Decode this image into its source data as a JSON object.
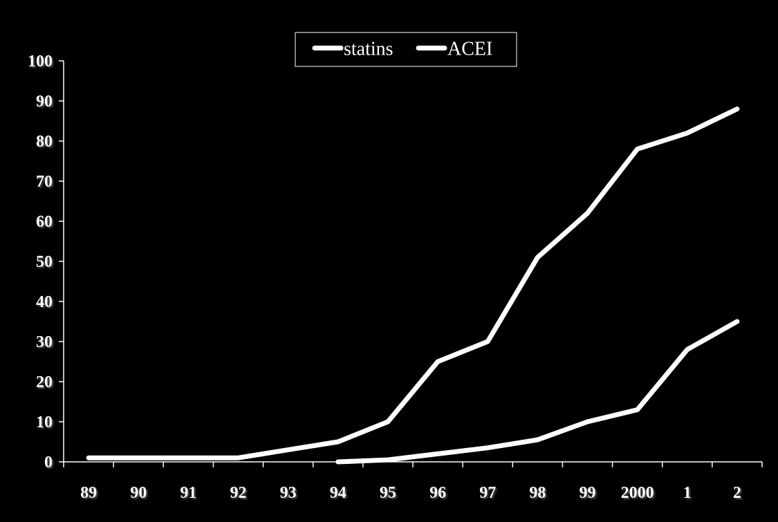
{
  "chart_data": {
    "type": "line",
    "categories": [
      "89",
      "90",
      "91",
      "92",
      "93",
      "94",
      "95",
      "96",
      "97",
      "98",
      "99",
      "2000",
      "1",
      "2"
    ],
    "series": [
      {
        "name": "statins",
        "values": [
          1,
          1,
          1,
          1,
          3,
          5,
          10,
          25,
          30,
          51,
          62,
          78,
          82,
          88
        ]
      },
      {
        "name": "ACEI",
        "values": [
          null,
          null,
          null,
          null,
          null,
          0,
          0.5,
          2,
          3.5,
          5.5,
          10,
          13,
          28,
          35
        ]
      }
    ],
    "yticks": [
      "0",
      "10",
      "20",
      "30",
      "40",
      "50",
      "60",
      "70",
      "80",
      "90",
      "100"
    ],
    "ylim": [
      0,
      100
    ],
    "grid": false,
    "legend_position": "top-center",
    "colors": {
      "background": "#000000",
      "axis": "#ffffff",
      "statins": "#ffffff",
      "ACEI": "#ffffff"
    }
  }
}
